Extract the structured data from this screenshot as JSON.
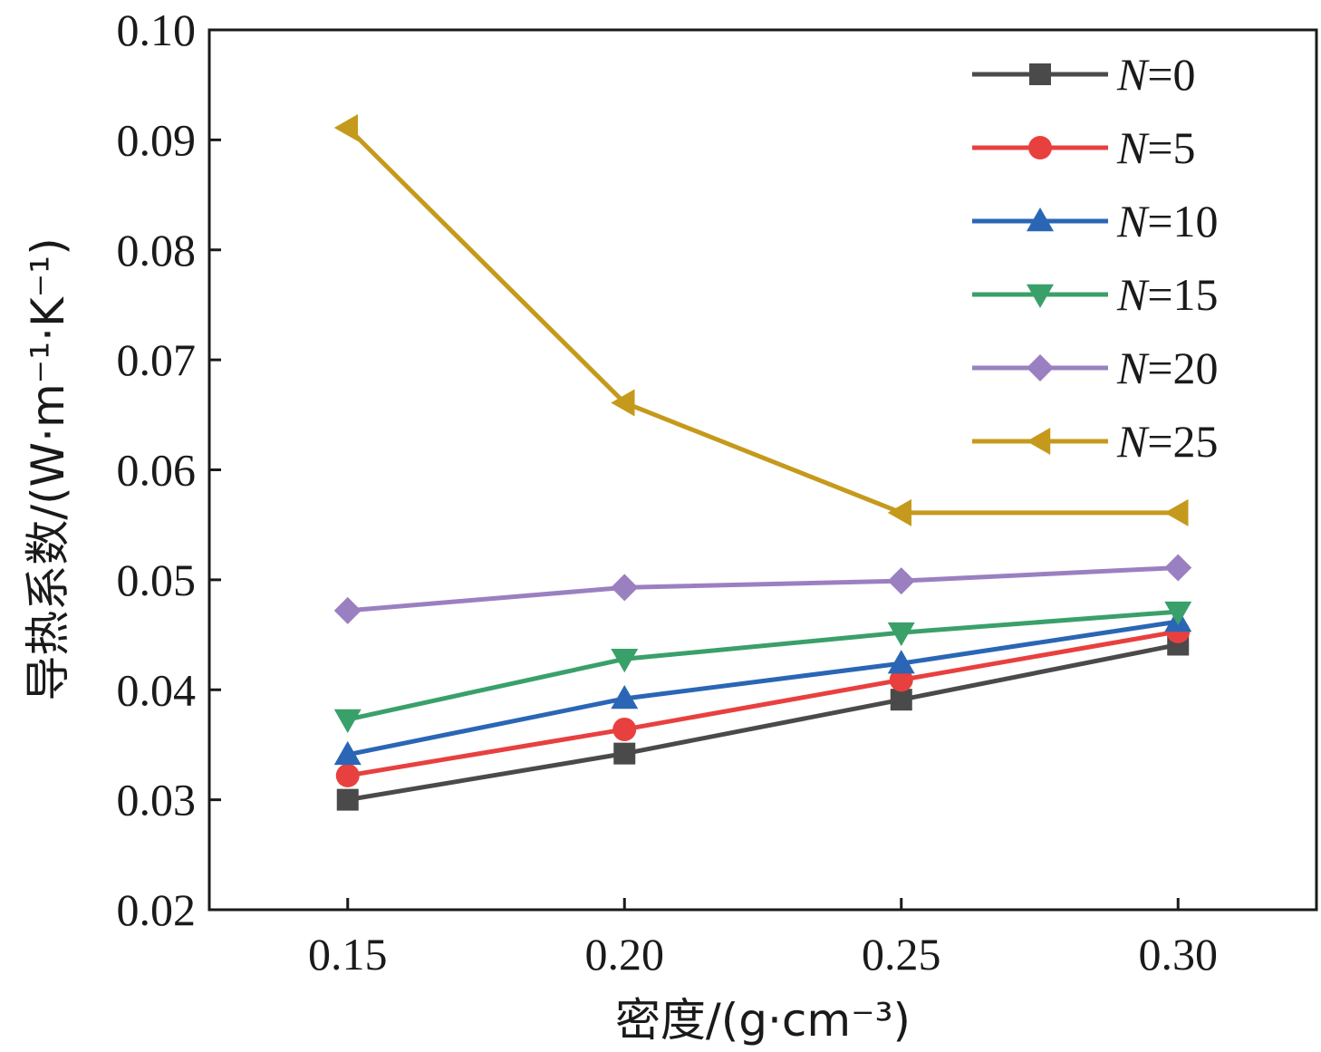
{
  "chart_data": {
    "type": "line",
    "xlabel": "密度/(g·cm⁻³)",
    "ylabel": "导热系数/(W·m⁻¹·K⁻¹)",
    "xlim": [
      0.125,
      0.325
    ],
    "ylim": [
      0.02,
      0.1
    ],
    "x_ticks": [
      "0.15",
      "0.20",
      "0.25",
      "0.30"
    ],
    "x_tick_values": [
      0.15,
      0.2,
      0.25,
      0.3
    ],
    "y_ticks": [
      "0.02",
      "0.03",
      "0.04",
      "0.05",
      "0.06",
      "0.07",
      "0.08",
      "0.09",
      "0.10"
    ],
    "y_tick_values": [
      0.02,
      0.03,
      0.04,
      0.05,
      0.06,
      0.07,
      0.08,
      0.09,
      0.1
    ],
    "x": [
      0.15,
      0.2,
      0.25,
      0.3
    ],
    "legend_position": "top-right",
    "grid": false,
    "series": [
      {
        "name": "N=0",
        "var": "N",
        "eq": "=0",
        "color": "#4a4a4a",
        "marker": "square",
        "values": [
          0.03,
          0.0342,
          0.0391,
          0.0441
        ]
      },
      {
        "name": "N=5",
        "var": "N",
        "eq": "=5",
        "color": "#e8403f",
        "marker": "circle",
        "values": [
          0.0322,
          0.0364,
          0.0409,
          0.0453
        ]
      },
      {
        "name": "N=10",
        "var": "N",
        "eq": "=10",
        "color": "#2a66b5",
        "marker": "triangle-up",
        "values": [
          0.0341,
          0.0392,
          0.0424,
          0.0462
        ]
      },
      {
        "name": "N=15",
        "var": "N",
        "eq": "=15",
        "color": "#3aa06a",
        "marker": "triangle-down",
        "values": [
          0.0373,
          0.0428,
          0.0452,
          0.0471
        ]
      },
      {
        "name": "N=20",
        "var": "N",
        "eq": "=20",
        "color": "#9a80c1",
        "marker": "diamond",
        "values": [
          0.0472,
          0.0493,
          0.0499,
          0.0511
        ]
      },
      {
        "name": "N=25",
        "var": "N",
        "eq": "=25",
        "color": "#c59a1c",
        "marker": "triangle-left",
        "values": [
          0.0911,
          0.0661,
          0.0561,
          0.0561
        ]
      }
    ]
  }
}
